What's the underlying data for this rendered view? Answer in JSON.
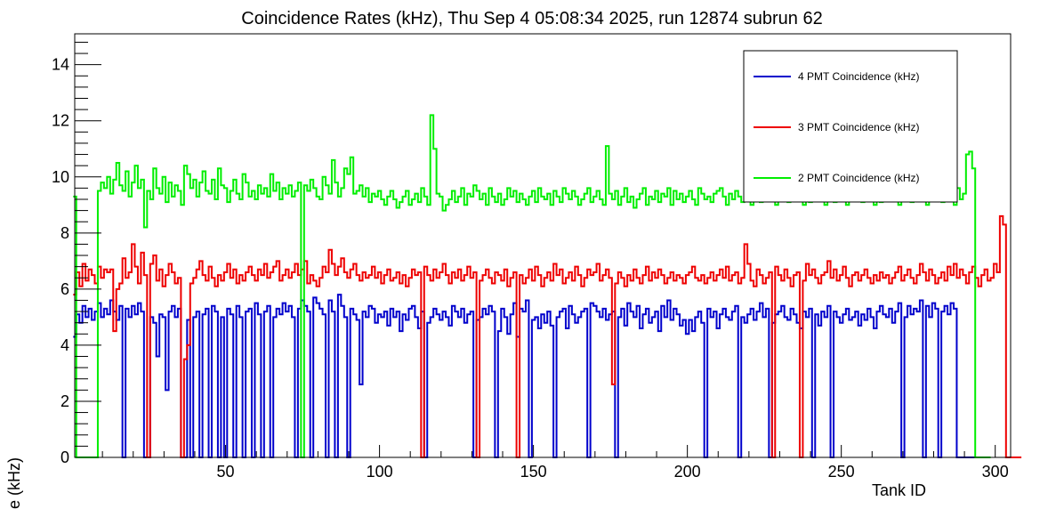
{
  "chart_data": {
    "type": "line",
    "title": "Coincidence Rates (kHz), Thu Sep  4 05:08:34 2025, run 12874 subrun 62",
    "xlabel": "Tank ID",
    "ylabel": "Rate (kHz)",
    "xlim": [
      1,
      305
    ],
    "ylim": [
      0,
      15.1
    ],
    "x_ticks": [
      50,
      100,
      150,
      200,
      250,
      300
    ],
    "y_ticks": [
      0,
      2,
      4,
      6,
      8,
      10,
      12,
      14
    ],
    "grid": false,
    "legend_position": "top-right",
    "bin_width": 1,
    "x_start": 1,
    "series": [
      {
        "name": "4 PMT Coincidence (kHz)",
        "color": "#0000cc",
        "values": [
          4.3,
          5.1,
          4.8,
          5.4,
          5.0,
          5.3,
          4.9,
          5.2,
          5.5,
          5.0,
          5.3,
          5.1,
          5.6,
          5.2,
          4.9,
          5.4,
          0,
          5.3,
          5.0,
          5.4,
          5.1,
          5.5,
          5.2,
          0,
          0,
          5.0,
          4.8,
          3.6,
          5.1,
          5.0,
          2.4,
          5.2,
          5.4,
          5.0,
          5.3,
          0,
          0,
          4.9,
          0,
          5.0,
          5.2,
          0,
          5.1,
          5.3,
          0,
          5.4,
          5.2,
          0,
          5.0,
          0,
          5.3,
          5.1,
          0,
          5.4,
          5.0,
          0,
          5.2,
          5.3,
          0,
          5.5,
          5.1,
          0,
          5.2,
          5.4,
          0,
          5.0,
          5.3,
          5.1,
          5.5,
          5.2,
          5.4,
          5.0,
          0,
          5.3,
          5.6,
          5.4,
          5.2,
          0,
          5.7,
          5.5,
          5.3,
          5.1,
          0,
          5.6,
          5.2,
          0,
          5.8,
          5.4,
          5.0,
          0,
          5.3,
          5.1,
          4.9,
          2.6,
          5.2,
          5.0,
          5.4,
          5.3,
          4.8,
          5.1,
          5.0,
          5.2,
          4.7,
          5.3,
          5.0,
          5.2,
          4.5,
          5.1,
          4.9,
          5.3,
          5.4,
          5.0,
          4.6,
          5.2,
          0,
          4.8,
          5.0,
          5.3,
          5.1,
          4.9,
          5.2,
          5.0,
          4.7,
          5.4,
          5.2,
          5.0,
          5.3,
          4.8,
          5.1,
          5.2,
          0,
          4.9,
          5.0,
          5.3,
          5.1,
          5.4,
          5.2,
          0,
          4.5,
          5.3,
          5.0,
          4.4,
          5.1,
          5.5,
          4.3,
          5.3,
          5.2,
          5.6,
          0,
          4.9,
          5.0,
          4.6,
          5.1,
          4.8,
          5.2,
          4.7,
          0,
          5.0,
          5.2,
          5.3,
          4.6,
          5.4,
          5.1,
          4.8,
          5.0,
          5.2,
          5.3,
          0,
          5.5,
          5.4,
          5.2,
          5.0,
          5.3,
          4.9,
          5.1,
          5.2,
          0,
          5.0,
          5.3,
          4.7,
          5.5,
          5.2,
          5.0,
          5.4,
          4.6,
          5.1,
          5.3,
          4.8,
          5.0,
          5.2,
          4.5,
          5.4,
          5.0,
          5.6,
          4.9,
          5.3,
          5.1,
          4.7,
          4.9,
          4.4,
          4.9,
          4.5,
          5.0,
          5.2,
          4.8,
          0,
          5.3,
          5.0,
          5.2,
          4.6,
          5.1,
          5.3,
          5.0,
          4.9,
          5.2,
          5.4,
          0,
          5.0,
          4.8,
          5.1,
          5.3,
          4.9,
          5.2,
          5.5,
          5.0,
          5.3,
          0,
          4.8,
          5.1,
          5.2,
          5.4,
          5.0,
          4.9,
          5.3,
          5.1,
          4.8,
          4.6,
          5.2,
          5.0,
          5.3,
          0,
          5.1,
          4.7,
          5.2,
          5.0,
          5.4,
          0,
          5.2,
          5.0,
          4.8,
          5.1,
          5.3,
          4.9,
          5.0,
          5.2,
          4.7,
          5.1,
          4.9,
          5.3,
          5.0,
          4.6,
          5.2,
          5.4,
          5.1,
          5.0,
          5.3,
          4.8,
          5.2,
          5.5,
          0,
          5.0,
          5.4,
          5.1,
          5.3,
          5.2,
          5.6,
          0,
          5.4,
          5.0,
          5.5,
          5.3,
          0,
          5.2,
          5.4,
          5.1,
          5.5,
          5.3,
          0,
          0,
          0,
          0,
          0,
          0
        ]
      },
      {
        "name": "3 PMT Coincidence (kHz)",
        "color": "#ee0000",
        "values": [
          5.8,
          6.6,
          6.1,
          6.9,
          6.3,
          6.7,
          6.5,
          6.2,
          6.8,
          6.4,
          6.7,
          6.6,
          6.7,
          4.5,
          6.0,
          6.2,
          7.1,
          6.4,
          6.6,
          7.6,
          6.8,
          6.2,
          7.3,
          6.5,
          0,
          6.9,
          7.2,
          6.3,
          6.7,
          6.1,
          6.5,
          6.9,
          6.6,
          6.2,
          6.4,
          0,
          3.5,
          4.0,
          6.2,
          6.4,
          6.7,
          7.0,
          6.5,
          6.3,
          6.8,
          6.4,
          6.1,
          6.5,
          6.3,
          6.6,
          6.9,
          6.4,
          6.7,
          6.2,
          6.5,
          6.3,
          6.6,
          6.8,
          6.5,
          6.3,
          6.7,
          6.5,
          6.9,
          6.4,
          6.6,
          6.8,
          7.0,
          6.3,
          6.5,
          6.7,
          6.4,
          6.6,
          6.9,
          6.5,
          6.7,
          7.0,
          6.2,
          6.5,
          6.3,
          6.1,
          6.4,
          6.8,
          6.6,
          7.4,
          6.9,
          6.5,
          6.8,
          7.1,
          6.6,
          6.4,
          6.7,
          6.9,
          6.5,
          6.3,
          6.6,
          6.4,
          6.5,
          6.8,
          6.4,
          6.6,
          6.2,
          6.5,
          6.7,
          6.3,
          6.4,
          6.6,
          6.2,
          6.5,
          6.1,
          6.4,
          6.7,
          6.5,
          6.6,
          0,
          6.8,
          6.5,
          6.3,
          6.7,
          6.4,
          6.6,
          6.9,
          6.5,
          6.2,
          6.6,
          6.4,
          6.7,
          6.3,
          6.5,
          6.8,
          6.4,
          6.6,
          0,
          6.3,
          6.5,
          6.7,
          6.4,
          6.2,
          6.6,
          6.5,
          6.3,
          6.7,
          6.1,
          6.4,
          6.6,
          0,
          6.5,
          6.2,
          6.4,
          6.7,
          6.3,
          6.8,
          6.5,
          6.1,
          6.4,
          6.6,
          6.3,
          6.9,
          6.5,
          6.7,
          6.2,
          6.4,
          6.6,
          6.3,
          6.8,
          6.5,
          6.1,
          6.4,
          6.7,
          6.5,
          6.6,
          6.9,
          6.3,
          6.5,
          6.7,
          6.4,
          2.6,
          6.2,
          6.6,
          6.4,
          6.1,
          6.5,
          6.3,
          6.7,
          6.4,
          6.2,
          6.5,
          6.8,
          6.3,
          6.6,
          6.4,
          6.7,
          6.5,
          6.2,
          6.4,
          6.6,
          6.3,
          6.5,
          6.4,
          6.2,
          6.5,
          6.6,
          6.8,
          6.4,
          6.3,
          6.5,
          6.2,
          6.4,
          6.6,
          6.3,
          6.5,
          6.7,
          6.4,
          6.8,
          6.3,
          6.5,
          6.6,
          6.2,
          6.4,
          7.6,
          6.9,
          6.3,
          6.1,
          6.7,
          6.5,
          6.2,
          6.4,
          6.6,
          0,
          6.8,
          6.5,
          6.3,
          6.7,
          6.4,
          6.1,
          6.5,
          6.6,
          0,
          6.3,
          6.9,
          6.5,
          6.7,
          6.4,
          6.2,
          6.5,
          6.6,
          7.0,
          6.4,
          6.7,
          6.3,
          6.5,
          6.8,
          6.4,
          6.1,
          6.5,
          6.6,
          6.3,
          6.5,
          6.7,
          6.4,
          6.2,
          6.5,
          6.3,
          6.6,
          6.4,
          6.5,
          6.2,
          6.4,
          6.6,
          6.8,
          6.3,
          6.5,
          6.7,
          6.4,
          6.2,
          6.5,
          6.9,
          6.6,
          6.3,
          6.7,
          6.5,
          6.2,
          6.4,
          6.6,
          6.3,
          6.8,
          6.5,
          6.9,
          6.4,
          6.7,
          6.5,
          6.2,
          6.6,
          6.8,
          6.4,
          6.1,
          6.5,
          6.7,
          6.3,
          6.4,
          6.9,
          6.6,
          8.6,
          8.3,
          0,
          0,
          0,
          0,
          0
        ]
      },
      {
        "name": "2 PMT Coincidence (kHz)",
        "color": "#00ee00",
        "values": [
          9.3,
          0,
          0,
          0,
          0,
          0,
          0,
          0,
          9.5,
          9.8,
          9.6,
          10.0,
          9.4,
          9.9,
          10.5,
          9.7,
          9.5,
          10.2,
          9.3,
          9.8,
          10.4,
          9.6,
          9.9,
          8.2,
          9.5,
          9.2,
          10.3,
          9.6,
          9.4,
          10.0,
          9.1,
          9.8,
          9.3,
          9.7,
          9.5,
          9.0,
          10.4,
          10.1,
          9.6,
          9.9,
          9.3,
          9.8,
          10.2,
          9.5,
          9.4,
          9.9,
          9.2,
          10.3,
          9.7,
          9.6,
          9.1,
          9.5,
          9.9,
          9.4,
          9.2,
          10.1,
          9.8,
          9.3,
          9.5,
          9.2,
          9.7,
          9.4,
          9.6,
          9.3,
          10.1,
          9.5,
          9.8,
          9.2,
          9.6,
          9.4,
          9.7,
          9.3,
          9.5,
          9.8,
          0,
          9.7,
          9.5,
          9.9,
          9.6,
          9.3,
          9.2,
          10.0,
          9.7,
          9.4,
          10.6,
          9.8,
          9.3,
          9.6,
          10.3,
          10.1,
          10.7,
          9.4,
          9.5,
          9.7,
          9.3,
          9.6,
          9.1,
          9.4,
          9.3,
          9.5,
          9.2,
          9.0,
          9.3,
          9.5,
          9.2,
          8.9,
          9.1,
          9.3,
          9.5,
          9.0,
          9.2,
          9.4,
          9.1,
          9.6,
          9.3,
          9.0,
          12.2,
          11.0,
          9.4,
          9.3,
          8.8,
          9.0,
          9.2,
          9.5,
          9.1,
          9.3,
          9.6,
          9.0,
          9.4,
          9.3,
          9.7,
          9.5,
          9.2,
          9.4,
          9.0,
          9.6,
          9.3,
          9.1,
          9.4,
          9.0,
          9.2,
          9.6,
          9.3,
          9.5,
          9.1,
          9.4,
          9.2,
          9.0,
          9.3,
          9.5,
          9.1,
          9.6,
          9.3,
          9.2,
          9.4,
          9.0,
          9.5,
          9.3,
          9.1,
          9.6,
          9.4,
          9.2,
          9.5,
          9.3,
          9.0,
          9.2,
          9.4,
          9.6,
          9.1,
          9.3,
          9.5,
          9.2,
          9.0,
          11.1,
          9.4,
          9.2,
          9.5,
          9.0,
          9.3,
          9.6,
          9.1,
          9.3,
          8.9,
          9.2,
          9.4,
          9.6,
          9.0,
          9.3,
          9.2,
          9.5,
          9.1,
          9.4,
          9.3,
          9.6,
          9.0,
          9.5,
          9.2,
          9.4,
          9.1,
          9.3,
          9.5,
          9.2,
          9.0,
          9.6,
          9.4,
          9.2,
          9.3,
          9.1,
          9.4,
          9.5,
          9.6,
          9.3,
          9.0,
          9.4,
          9.2,
          9.5,
          9.3,
          9.1,
          9.4,
          9.2,
          9.0,
          9.3,
          9.5,
          9.1,
          9.4,
          9.2,
          9.6,
          9.3,
          9.0,
          9.5,
          9.2,
          9.3,
          9.1,
          9.4,
          9.2,
          9.5,
          9.3,
          9.0,
          9.4,
          9.1,
          9.3,
          9.6,
          9.2,
          9.5,
          9.0,
          9.3,
          9.4,
          9.1,
          9.2,
          9.5,
          9.3,
          9.0,
          9.4,
          9.2,
          9.6,
          9.3,
          9.1,
          9.5,
          9.2,
          9.4,
          9.0,
          9.3,
          9.1,
          9.5,
          9.2,
          9.4,
          9.3,
          9.6,
          9.0,
          9.2,
          9.5,
          9.3,
          9.1,
          9.4,
          9.2,
          9.6,
          9.3,
          9.0,
          9.5,
          9.4,
          9.2,
          9.3,
          9.1,
          9.5,
          9.4,
          9.3,
          9.0,
          9.6,
          9.2,
          9.4,
          10.8,
          10.9,
          10.3,
          0,
          0,
          0,
          0,
          0
        ]
      }
    ]
  },
  "legend": {
    "items": [
      {
        "label": "4 PMT Coincidence (kHz)",
        "color": "#0000cc"
      },
      {
        "label": "3 PMT Coincidence (kHz)",
        "color": "#ee0000"
      },
      {
        "label": "2 PMT Coincidence (kHz)",
        "color": "#00ee00"
      }
    ]
  }
}
